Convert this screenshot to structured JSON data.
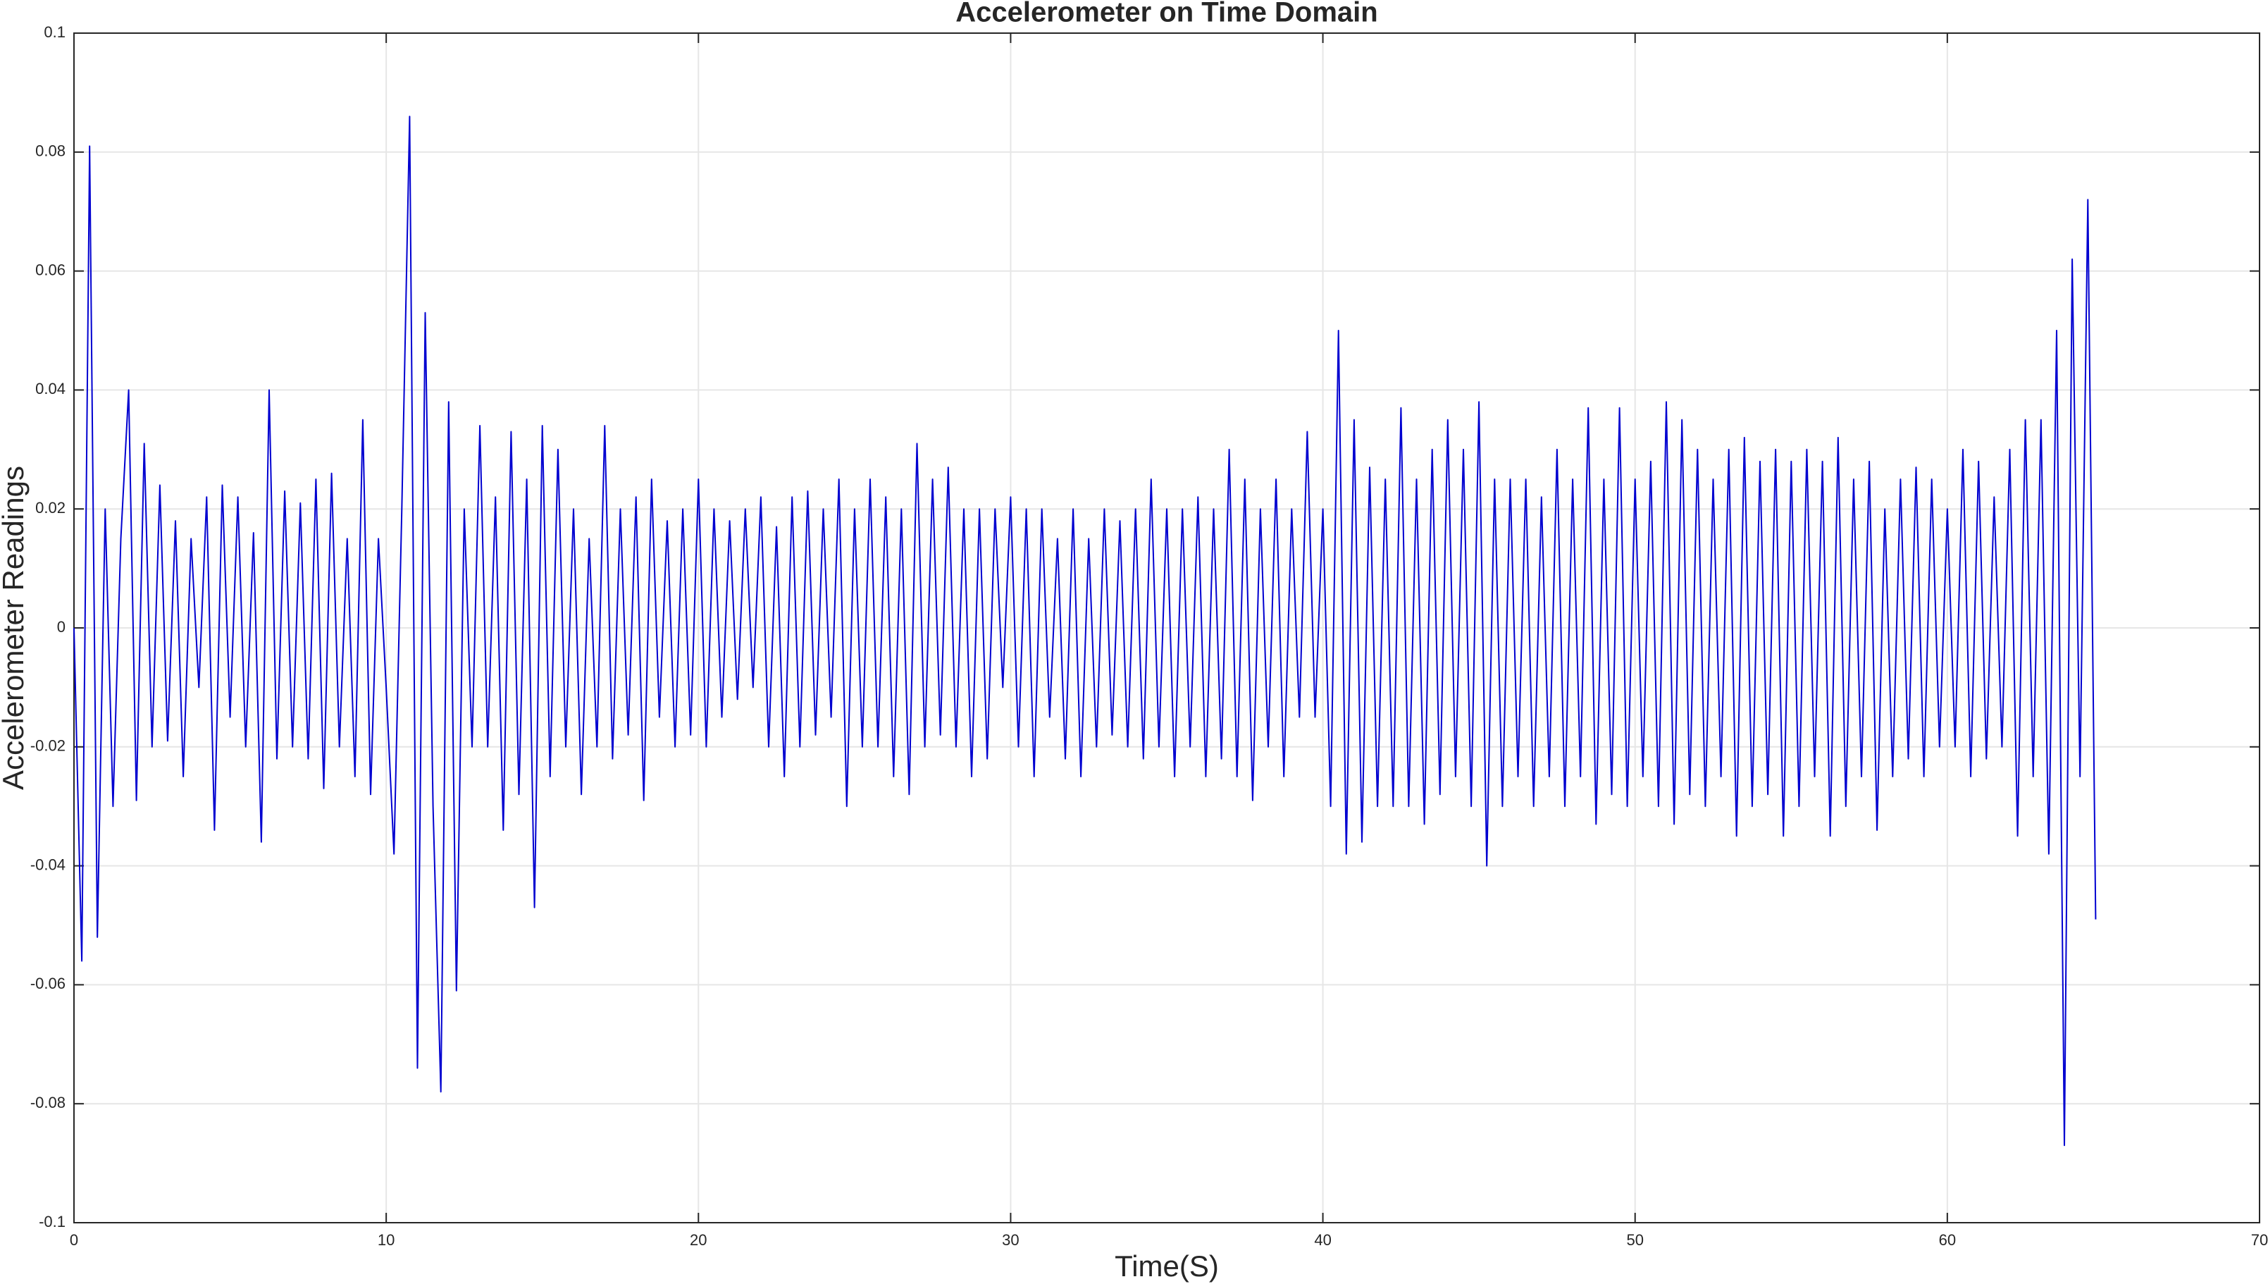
{
  "chart_data": {
    "type": "line",
    "title": "Accelerometer on Time Domain",
    "xlabel": "Time(S)",
    "ylabel": "Accelerometer Readings",
    "color": "#0000d0",
    "grid": true,
    "xlim": [
      0,
      70
    ],
    "xticks": [
      0,
      10,
      20,
      30,
      40,
      50,
      60,
      70
    ],
    "ylim": [
      -0.1,
      0.1
    ],
    "yticks": [
      -0.1,
      -0.08,
      -0.06,
      -0.04,
      -0.02,
      0,
      0.02,
      0.04,
      0.06,
      0.08,
      0.1
    ],
    "x": [
      0,
      0.25,
      0.5,
      0.75,
      1,
      1.25,
      1.5,
      1.75,
      2,
      2.25,
      2.5,
      2.75,
      3,
      3.25,
      3.5,
      3.75,
      4,
      4.25,
      4.5,
      4.75,
      5,
      5.25,
      5.5,
      5.75,
      6,
      6.25,
      6.5,
      6.75,
      7,
      7.25,
      7.5,
      7.75,
      8,
      8.25,
      8.5,
      8.75,
      9,
      9.25,
      9.5,
      9.75,
      10,
      10.25,
      10.5,
      10.75,
      11,
      11.25,
      11.5,
      11.75,
      12,
      12.25,
      12.5,
      12.75,
      13,
      13.25,
      13.5,
      13.75,
      14,
      14.25,
      14.5,
      14.75,
      15,
      15.25,
      15.5,
      15.75,
      16,
      16.25,
      16.5,
      16.75,
      17,
      17.25,
      17.5,
      17.75,
      18,
      18.25,
      18.5,
      18.75,
      19,
      19.25,
      19.5,
      19.75,
      20,
      20.25,
      20.5,
      20.75,
      21,
      21.25,
      21.5,
      21.75,
      22,
      22.25,
      22.5,
      22.75,
      23,
      23.25,
      23.5,
      23.75,
      24,
      24.25,
      24.5,
      24.75,
      25,
      25.25,
      25.5,
      25.75,
      26,
      26.25,
      26.5,
      26.75,
      27,
      27.25,
      27.5,
      27.75,
      28,
      28.25,
      28.5,
      28.75,
      29,
      29.25,
      29.5,
      29.75,
      30,
      30.25,
      30.5,
      30.75,
      31,
      31.25,
      31.5,
      31.75,
      32,
      32.25,
      32.5,
      32.75,
      33,
      33.25,
      33.5,
      33.75,
      34,
      34.25,
      34.5,
      34.75,
      35,
      35.25,
      35.5,
      35.75,
      36,
      36.25,
      36.5,
      36.75,
      37,
      37.25,
      37.5,
      37.75,
      38,
      38.25,
      38.5,
      38.75,
      39,
      39.25,
      39.5,
      39.75,
      40,
      40.25,
      40.5,
      40.75,
      41,
      41.25,
      41.5,
      41.75,
      42,
      42.25,
      42.5,
      42.75,
      43,
      43.25,
      43.5,
      43.75,
      44,
      44.25,
      44.5,
      44.75,
      45,
      45.25,
      45.5,
      45.75,
      46,
      46.25,
      46.5,
      46.75,
      47,
      47.25,
      47.5,
      47.75,
      48,
      48.25,
      48.5,
      48.75,
      49,
      49.25,
      49.5,
      49.75,
      50,
      50.25,
      50.5,
      50.75,
      51,
      51.25,
      51.5,
      51.75,
      52,
      52.25,
      52.5,
      52.75,
      53,
      53.25,
      53.5,
      53.75,
      54,
      54.25,
      54.5,
      54.75,
      55,
      55.25,
      55.5,
      55.75,
      56,
      56.25,
      56.5,
      56.75,
      57,
      57.25,
      57.5,
      57.75,
      58,
      58.25,
      58.5,
      58.75,
      59,
      59.25,
      59.5,
      59.75,
      60,
      60.25,
      60.5,
      60.75,
      61,
      61.25,
      61.5,
      61.75,
      62,
      62.25,
      62.5,
      62.75,
      63,
      63.25,
      63.5,
      63.75,
      64,
      64.25,
      64.5,
      64.75
    ],
    "values": [
      0,
      -0.056,
      0.081,
      -0.052,
      0.02,
      -0.03,
      0.015,
      0.04,
      -0.029,
      0.031,
      -0.02,
      0.024,
      -0.019,
      0.018,
      -0.025,
      0.015,
      -0.01,
      0.022,
      -0.034,
      0.024,
      -0.015,
      0.022,
      -0.02,
      0.016,
      -0.036,
      0.04,
      -0.022,
      0.023,
      -0.02,
      0.021,
      -0.022,
      0.025,
      -0.027,
      0.026,
      -0.02,
      0.015,
      -0.025,
      0.035,
      -0.028,
      0.015,
      -0.01,
      -0.038,
      0.02,
      0.086,
      -0.074,
      0.053,
      -0.03,
      -0.078,
      0.038,
      -0.061,
      0.02,
      -0.02,
      0.034,
      -0.02,
      0.022,
      -0.034,
      0.033,
      -0.028,
      0.025,
      -0.047,
      0.034,
      -0.025,
      0.03,
      -0.02,
      0.02,
      -0.028,
      0.015,
      -0.02,
      0.034,
      -0.022,
      0.02,
      -0.018,
      0.022,
      -0.029,
      0.025,
      -0.015,
      0.018,
      -0.02,
      0.02,
      -0.018,
      0.025,
      -0.02,
      0.02,
      -0.015,
      0.018,
      -0.012,
      0.02,
      -0.01,
      0.022,
      -0.02,
      0.017,
      -0.025,
      0.022,
      -0.02,
      0.023,
      -0.018,
      0.02,
      -0.015,
      0.025,
      -0.03,
      0.02,
      -0.02,
      0.025,
      -0.02,
      0.022,
      -0.025,
      0.02,
      -0.028,
      0.031,
      -0.02,
      0.025,
      -0.018,
      0.027,
      -0.02,
      0.02,
      -0.025,
      0.02,
      -0.022,
      0.02,
      -0.01,
      0.022,
      -0.02,
      0.02,
      -0.025,
      0.02,
      -0.015,
      0.015,
      -0.022,
      0.02,
      -0.025,
      0.015,
      -0.02,
      0.02,
      -0.018,
      0.018,
      -0.02,
      0.02,
      -0.022,
      0.025,
      -0.02,
      0.02,
      -0.025,
      0.02,
      -0.02,
      0.022,
      -0.025,
      0.02,
      -0.022,
      0.03,
      -0.025,
      0.025,
      -0.029,
      0.02,
      -0.02,
      0.025,
      -0.025,
      0.02,
      -0.015,
      0.033,
      -0.015,
      0.02,
      -0.03,
      0.05,
      -0.038,
      0.035,
      -0.036,
      0.027,
      -0.03,
      0.025,
      -0.03,
      0.037,
      -0.03,
      0.025,
      -0.033,
      0.03,
      -0.028,
      0.035,
      -0.025,
      0.03,
      -0.03,
      0.038,
      -0.04,
      0.025,
      -0.03,
      0.025,
      -0.025,
      0.025,
      -0.03,
      0.022,
      -0.025,
      0.03,
      -0.03,
      0.025,
      -0.025,
      0.037,
      -0.033,
      0.025,
      -0.028,
      0.037,
      -0.03,
      0.025,
      -0.025,
      0.028,
      -0.03,
      0.038,
      -0.033,
      0.035,
      -0.028,
      0.03,
      -0.03,
      0.025,
      -0.025,
      0.03,
      -0.035,
      0.032,
      -0.03,
      0.028,
      -0.028,
      0.03,
      -0.035,
      0.028,
      -0.03,
      0.03,
      -0.025,
      0.028,
      -0.035,
      0.032,
      -0.03,
      0.025,
      -0.025,
      0.028,
      -0.034,
      0.02,
      -0.025,
      0.025,
      -0.022,
      0.027,
      -0.025,
      0.025,
      -0.02,
      0.02,
      -0.02,
      0.03,
      -0.025,
      0.028,
      -0.022,
      0.022,
      -0.02,
      0.03,
      -0.035,
      0.035,
      -0.025,
      0.035,
      -0.038,
      0.05,
      -0.087,
      0.062,
      -0.025,
      0.072,
      -0.049
    ]
  }
}
